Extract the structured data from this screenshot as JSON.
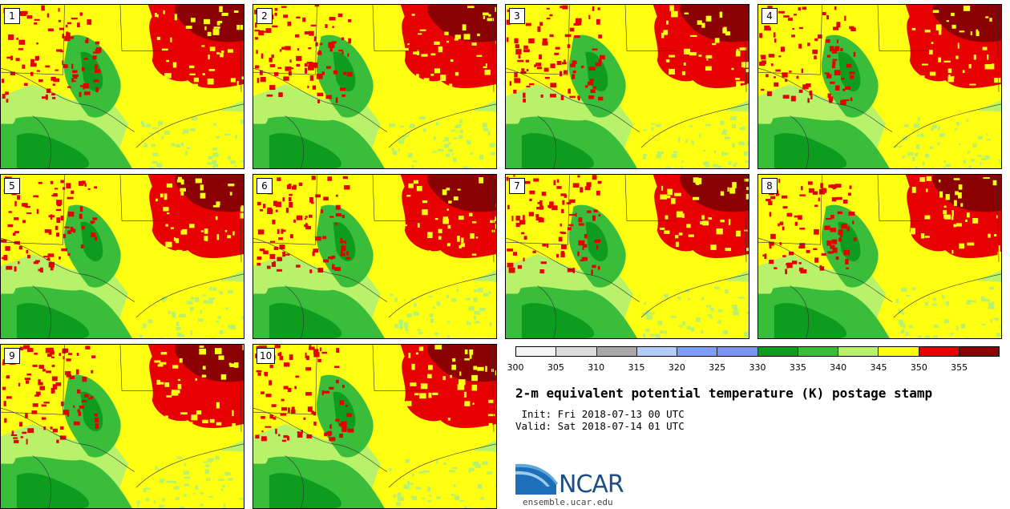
{
  "panels": [
    {
      "label": "1"
    },
    {
      "label": "2"
    },
    {
      "label": "3"
    },
    {
      "label": "4"
    },
    {
      "label": "5"
    },
    {
      "label": "6"
    },
    {
      "label": "7"
    },
    {
      "label": "8"
    },
    {
      "label": "9"
    },
    {
      "label": "10"
    }
  ],
  "colorbar": {
    "ticks": [
      "300",
      "305",
      "310",
      "315",
      "320",
      "325",
      "330",
      "335",
      "340",
      "345",
      "350",
      "355"
    ],
    "colors": [
      "#f5f5f5",
      "#dcdcdc",
      "#a9a9a9",
      "#b3cdfa",
      "#7f9ef5",
      "#7a94f0",
      "#0e9c1e",
      "#3bbd3c",
      "#b7f26a",
      "#ffff12",
      "#e60000",
      "#8b0000"
    ]
  },
  "title": "2-m equivalent potential temperature (K) postage stamp",
  "init": " Init: Fri 2018-07-13 00 UTC",
  "valid": "Valid: Sat 2018-07-14 01 UTC",
  "logo": {
    "text": "NCAR",
    "url": "ensemble.ucar.edu",
    "colors": {
      "blue": "#1c4f85",
      "light": "#5ea7dd"
    }
  }
}
